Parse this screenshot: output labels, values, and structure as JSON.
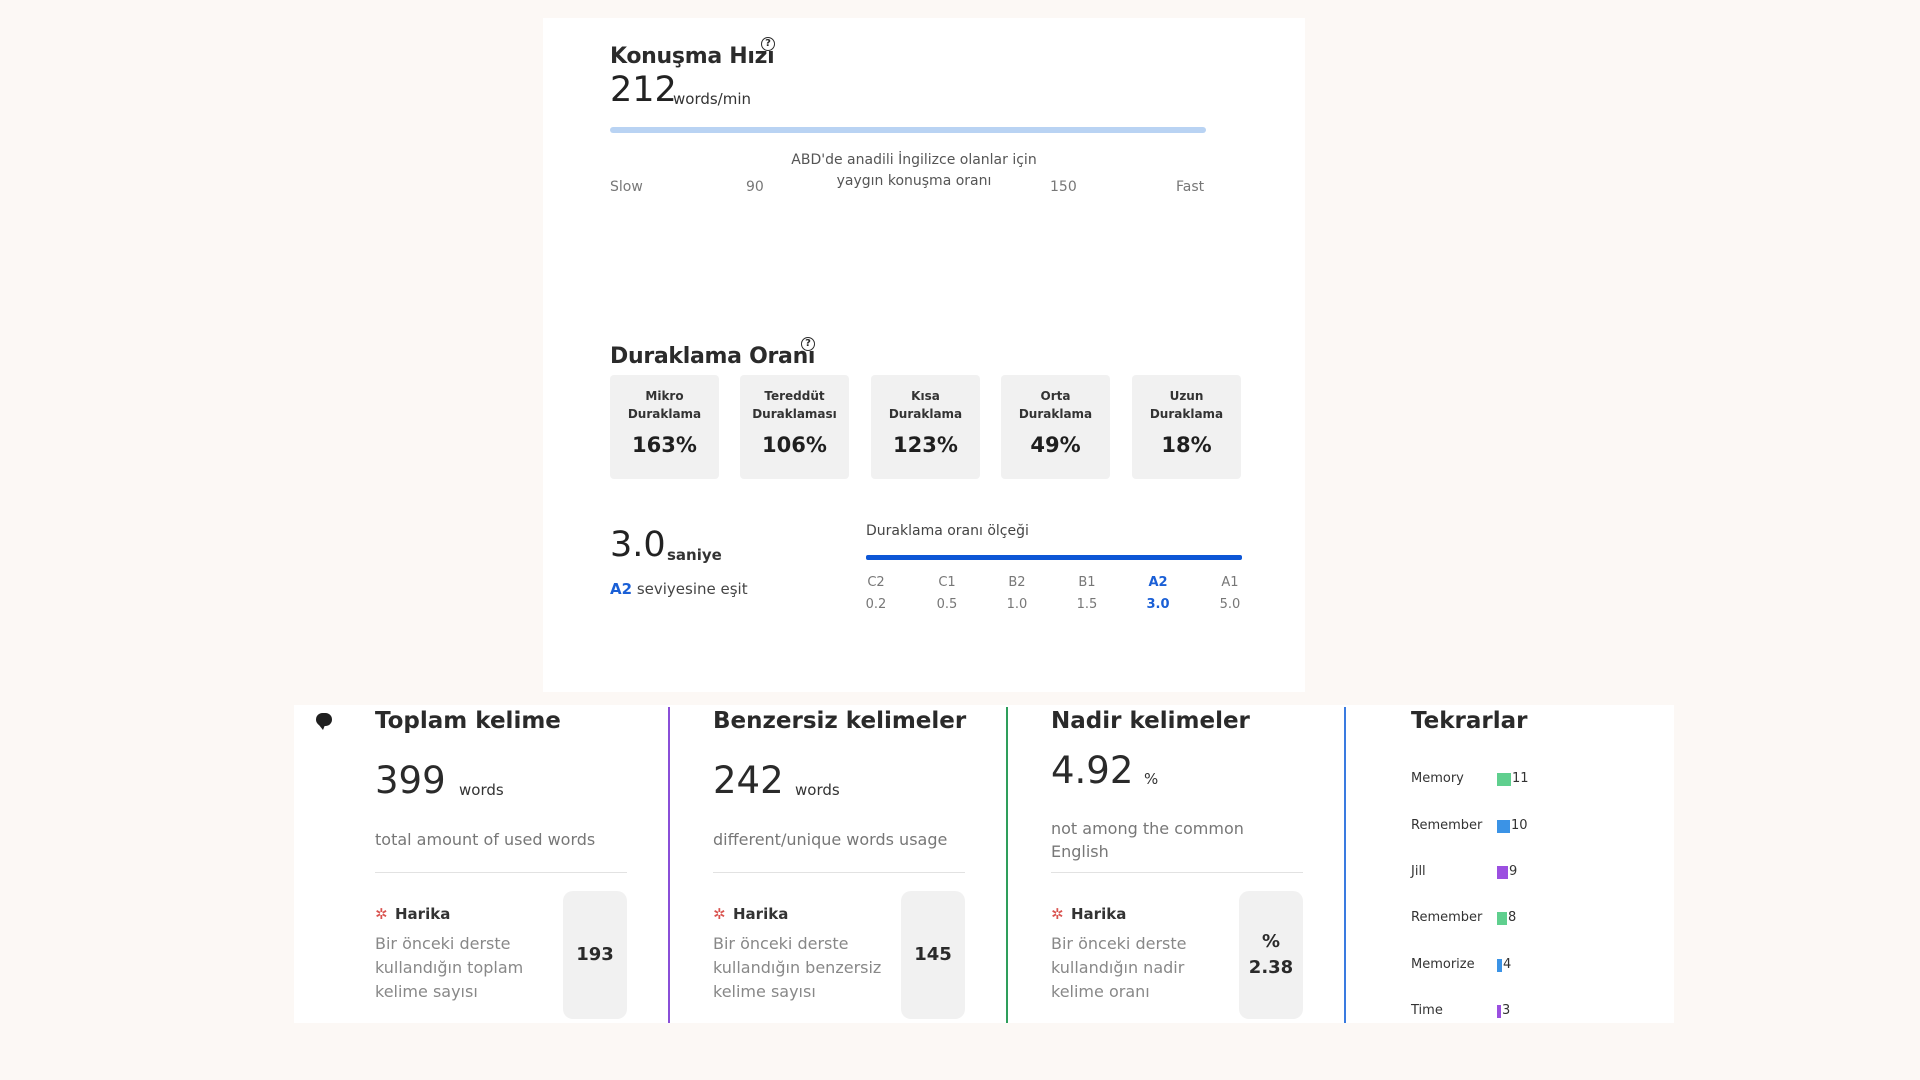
{
  "speech_rate": {
    "title": "Konuşma Hızı",
    "value": "212",
    "unit": "words/min",
    "scale": {
      "slow": "Slow",
      "low": "90",
      "center_text": "ABD'de anadili İngilizce olanlar için yaygın konuşma oranı",
      "high": "150",
      "fast": "Fast"
    }
  },
  "pause_ratio": {
    "title": "Duraklama Oranı",
    "tiles": [
      {
        "label": "Mikro Duraklama",
        "value": "163%"
      },
      {
        "label": "Tereddüt Duraklaması",
        "value": "106%"
      },
      {
        "label": "Kısa Duraklama",
        "value": "123%"
      },
      {
        "label": "Orta Duraklama",
        "value": "49%"
      },
      {
        "label": "Uzun Duraklama",
        "value": "18%"
      }
    ],
    "seconds_value": "3.0",
    "seconds_unit": "saniye",
    "level": "A2",
    "level_text": "seviyesine eşit",
    "scale_title": "Duraklama oranı ölçeği",
    "scale": [
      {
        "level": "C2",
        "value": "0.2"
      },
      {
        "level": "C1",
        "value": "0.5"
      },
      {
        "level": "B2",
        "value": "1.0"
      },
      {
        "level": "B1",
        "value": "1.5"
      },
      {
        "level": "A2",
        "value": "3.0"
      },
      {
        "level": "A1",
        "value": "5.0"
      }
    ],
    "active_level": "A2"
  },
  "stats": [
    {
      "title": "Toplam kelime",
      "value": "399",
      "unit": "words",
      "desc": "total amount of used words",
      "badge": "Harika",
      "compare_desc": "Bir önceki derste kullandığın toplam kelime sayısı",
      "compare_value": "193",
      "divider_color": "#8a4fd8"
    },
    {
      "title": "Benzersiz kelimeler",
      "value": "242",
      "unit": "words",
      "desc": "different/unique words usage",
      "badge": "Harika",
      "compare_desc": "Bir önceki derste kullandığın benzersiz kelime sayısı",
      "compare_value": "145",
      "divider_color": "#2e9e5b"
    },
    {
      "title": "Nadir kelimeler",
      "value": "4.92",
      "unit": "%",
      "desc": "not among the common English",
      "badge": "Harika",
      "compare_desc": "Bir önceki derste kullandığın nadir kelime oranı",
      "compare_value": "% 2.38",
      "divider_color": "#3a7be0"
    }
  ],
  "repetitions": {
    "title": "Tekrarlar",
    "items": [
      {
        "word": "Memory",
        "count": 11,
        "color": "#5fcf8e"
      },
      {
        "word": "Remember",
        "count": 10,
        "color": "#3b93e6"
      },
      {
        "word": "Jill",
        "count": 9,
        "color": "#9b4fe0"
      },
      {
        "word": "Remember",
        "count": 8,
        "color": "#5fcf8e"
      },
      {
        "word": "Memorize",
        "count": 4,
        "color": "#3b93e6"
      },
      {
        "word": "Time",
        "count": 3,
        "color": "#9b4fe0"
      }
    ]
  },
  "colors": {
    "accent_blue": "#0d56d6",
    "light_blue_bar": "#b9d3f3",
    "level_highlight": "#1a5fd6"
  }
}
